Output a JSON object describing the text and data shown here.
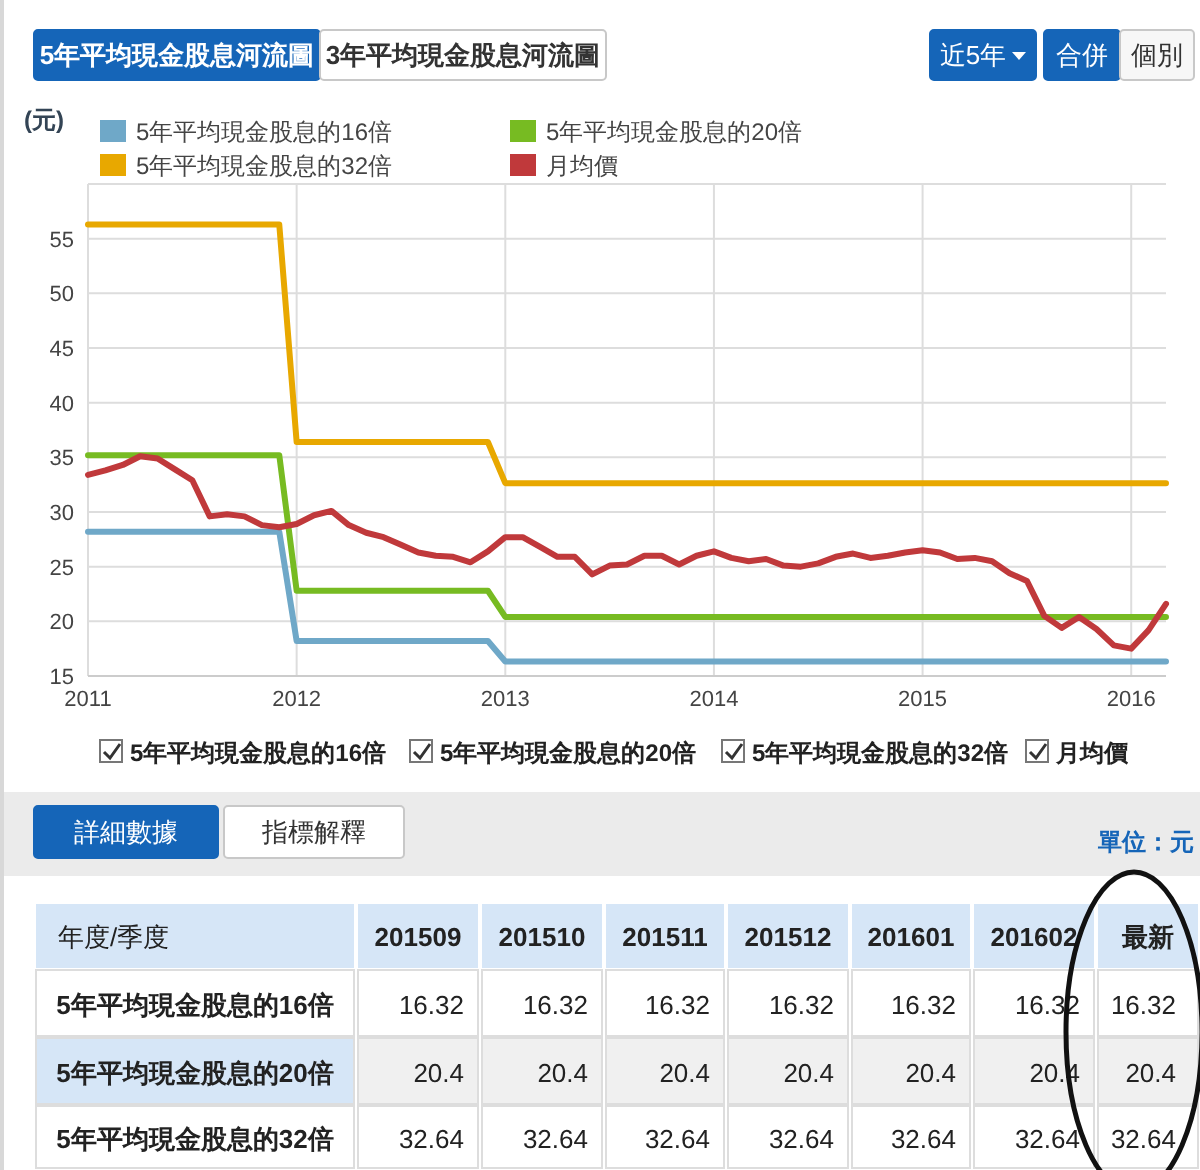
{
  "chart_data": {
    "type": "line",
    "ylabel": "(元)",
    "x": [
      "2011-01",
      "2011-02",
      "2011-03",
      "2011-04",
      "2011-05",
      "2011-06",
      "2011-07",
      "2011-08",
      "2011-09",
      "2011-10",
      "2011-11",
      "2011-12",
      "2012-01",
      "2012-02",
      "2012-03",
      "2012-04",
      "2012-05",
      "2012-06",
      "2012-07",
      "2012-08",
      "2012-09",
      "2012-10",
      "2012-11",
      "2012-12",
      "2013-01",
      "2013-02",
      "2013-03",
      "2013-04",
      "2013-05",
      "2013-06",
      "2013-07",
      "2013-08",
      "2013-09",
      "2013-10",
      "2013-11",
      "2013-12",
      "2014-01",
      "2014-02",
      "2014-03",
      "2014-04",
      "2014-05",
      "2014-06",
      "2014-07",
      "2014-08",
      "2014-09",
      "2014-10",
      "2014-11",
      "2014-12",
      "2015-01",
      "2015-02",
      "2015-03",
      "2015-04",
      "2015-05",
      "2015-06",
      "2015-07",
      "2015-08",
      "2015-09",
      "2015-10",
      "2015-11",
      "2015-12",
      "2016-01",
      "2016-02",
      "2016-03"
    ],
    "series": [
      {
        "name": "5年平均現金股息的16倍",
        "color": "#6fa8c8",
        "values": [
          28.2,
          28.2,
          28.2,
          28.2,
          28.2,
          28.2,
          28.2,
          28.2,
          28.2,
          28.2,
          28.2,
          28.2,
          18.2,
          18.2,
          18.2,
          18.2,
          18.2,
          18.2,
          18.2,
          18.2,
          18.2,
          18.2,
          18.2,
          18.2,
          16.32,
          16.32,
          16.32,
          16.32,
          16.32,
          16.32,
          16.32,
          16.32,
          16.32,
          16.32,
          16.32,
          16.32,
          16.32,
          16.32,
          16.32,
          16.32,
          16.32,
          16.32,
          16.32,
          16.32,
          16.32,
          16.32,
          16.32,
          16.32,
          16.32,
          16.32,
          16.32,
          16.32,
          16.32,
          16.32,
          16.32,
          16.32,
          16.32,
          16.32,
          16.32,
          16.32,
          16.32,
          16.32,
          16.32
        ]
      },
      {
        "name": "5年平均現金股息的20倍",
        "color": "#77bb22",
        "values": [
          35.2,
          35.2,
          35.2,
          35.2,
          35.2,
          35.2,
          35.2,
          35.2,
          35.2,
          35.2,
          35.2,
          35.2,
          22.8,
          22.8,
          22.8,
          22.8,
          22.8,
          22.8,
          22.8,
          22.8,
          22.8,
          22.8,
          22.8,
          22.8,
          20.4,
          20.4,
          20.4,
          20.4,
          20.4,
          20.4,
          20.4,
          20.4,
          20.4,
          20.4,
          20.4,
          20.4,
          20.4,
          20.4,
          20.4,
          20.4,
          20.4,
          20.4,
          20.4,
          20.4,
          20.4,
          20.4,
          20.4,
          20.4,
          20.4,
          20.4,
          20.4,
          20.4,
          20.4,
          20.4,
          20.4,
          20.4,
          20.4,
          20.4,
          20.4,
          20.4,
          20.4,
          20.4,
          20.4
        ]
      },
      {
        "name": "5年平均現金股息的32倍",
        "color": "#e8a800",
        "values": [
          56.3,
          56.3,
          56.3,
          56.3,
          56.3,
          56.3,
          56.3,
          56.3,
          56.3,
          56.3,
          56.3,
          56.3,
          36.4,
          36.4,
          36.4,
          36.4,
          36.4,
          36.4,
          36.4,
          36.4,
          36.4,
          36.4,
          36.4,
          36.4,
          32.64,
          32.64,
          32.64,
          32.64,
          32.64,
          32.64,
          32.64,
          32.64,
          32.64,
          32.64,
          32.64,
          32.64,
          32.64,
          32.64,
          32.64,
          32.64,
          32.64,
          32.64,
          32.64,
          32.64,
          32.64,
          32.64,
          32.64,
          32.64,
          32.64,
          32.64,
          32.64,
          32.64,
          32.64,
          32.64,
          32.64,
          32.64,
          32.64,
          32.64,
          32.64,
          32.64,
          32.64,
          32.64,
          32.64
        ]
      },
      {
        "name": "月均價",
        "color": "#c0393b",
        "values": [
          33.4,
          33.8,
          34.3,
          35.1,
          34.9,
          33.9,
          32.9,
          29.6,
          29.8,
          29.6,
          28.8,
          28.6,
          28.9,
          29.7,
          30.1,
          28.8,
          28.1,
          27.7,
          27.0,
          26.3,
          26.0,
          25.9,
          25.4,
          26.4,
          27.7,
          27.7,
          26.8,
          25.9,
          25.9,
          24.3,
          25.1,
          25.2,
          26.0,
          26.0,
          25.2,
          26.0,
          26.4,
          25.8,
          25.5,
          25.7,
          25.1,
          25.0,
          25.3,
          25.9,
          26.2,
          25.8,
          26.0,
          26.3,
          26.5,
          26.3,
          25.7,
          25.8,
          25.5,
          24.4,
          23.7,
          20.5,
          19.4,
          20.4,
          19.3,
          17.8,
          17.5,
          19.2,
          21.6
        ]
      }
    ],
    "xlim": [
      "2011-01",
      "2016-03"
    ],
    "xticks": [
      {
        "value": "2011-01",
        "label": "2011"
      },
      {
        "value": "2012-01",
        "label": "2012"
      },
      {
        "value": "2013-01",
        "label": "2013"
      },
      {
        "value": "2014-01",
        "label": "2014"
      },
      {
        "value": "2015-01",
        "label": "2015"
      },
      {
        "value": "2016-01",
        "label": "2016"
      }
    ],
    "ylim": [
      15,
      60
    ],
    "yticks": [
      15,
      20,
      25,
      30,
      35,
      40,
      45,
      50,
      55,
      {
        "value": 60,
        "label": null
      }
    ],
    "grid": true,
    "legend": "top left",
    "annotations": [
      "5年平均現金股息河流圖",
      "3年平均現金股息河流圖",
      "近5年",
      "合併",
      "個別",
      "詳細數據",
      "指標解釋",
      "單位：元",
      "年度/季度",
      "201509",
      "201510",
      "201511",
      "201512",
      "201601",
      "201602",
      "最新",
      "5年平均現金股息的16倍",
      "16.32",
      "16.32",
      "16.32",
      "16.32",
      "16.32",
      "16.32",
      "16.32",
      "5年平均現金股息的20倍",
      "20.4",
      "20.4",
      "20.4",
      "20.4",
      "20.4",
      "20.4",
      "20.4",
      "5年平均現金股息的32倍",
      "32.64",
      "32.64",
      "32.64",
      "32.64",
      "32.64",
      "32.64",
      "32.64"
    ]
  }
}
